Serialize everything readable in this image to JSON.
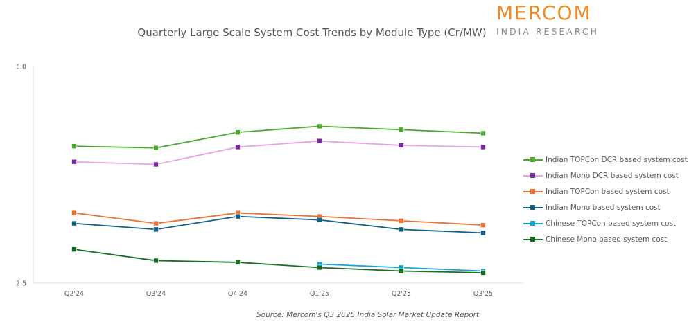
{
  "branding": {
    "logo_main": "MERCOM",
    "logo_sub": "INDIA RESEARCH"
  },
  "source_note": "Source: Mercom's Q3 2025 India Solar Market Update Report",
  "chart_data": {
    "type": "line",
    "title": "Quarterly Large Scale System Cost Trends by Module Type (Cr/MW)",
    "xlabel": "",
    "ylabel": "",
    "categories": [
      "Q2'24",
      "Q3'24",
      "Q4'24",
      "Q1'25",
      "Q2'25",
      "Q3'25"
    ],
    "ylim": [
      2.5,
      5.0
    ],
    "y_ticks": [
      "5.0",
      "2.5"
    ],
    "y_tick_values": [
      5.0,
      2.5
    ],
    "grid": false,
    "legend_position": "right",
    "marker": "square",
    "series": [
      {
        "name": "Indian TOPCon DCR based system cost",
        "line_color": "#4EA72E",
        "marker_color": "#4EA72E",
        "values": [
          4.08,
          4.06,
          4.24,
          4.31,
          4.27,
          4.23
        ]
      },
      {
        "name": "Indian Mono DCR based system cost",
        "line_color": "#E8A3E4",
        "marker_color": "#7B2A9C",
        "values": [
          3.9,
          3.87,
          4.07,
          4.14,
          4.09,
          4.07
        ]
      },
      {
        "name": "Indian TOPCon based system cost",
        "line_color": "#E97132",
        "marker_color": "#E97132",
        "values": [
          3.31,
          3.19,
          3.31,
          3.27,
          3.22,
          3.17
        ]
      },
      {
        "name": "Indian Mono based system cost",
        "line_color": "#156082",
        "marker_color": "#156082",
        "values": [
          3.19,
          3.12,
          3.27,
          3.23,
          3.12,
          3.08
        ]
      },
      {
        "name": "Chinese TOPCon based system cost",
        "line_color": "#19A5DA",
        "marker_color": "#0F9ED5",
        "values": [
          null,
          null,
          null,
          2.72,
          2.68,
          2.64
        ]
      },
      {
        "name": "Chinese Mono based system cost",
        "line_color": "#1E6B2A",
        "marker_color": "#196B24",
        "values": [
          2.89,
          2.76,
          2.74,
          2.68,
          2.64,
          2.62
        ]
      }
    ]
  }
}
